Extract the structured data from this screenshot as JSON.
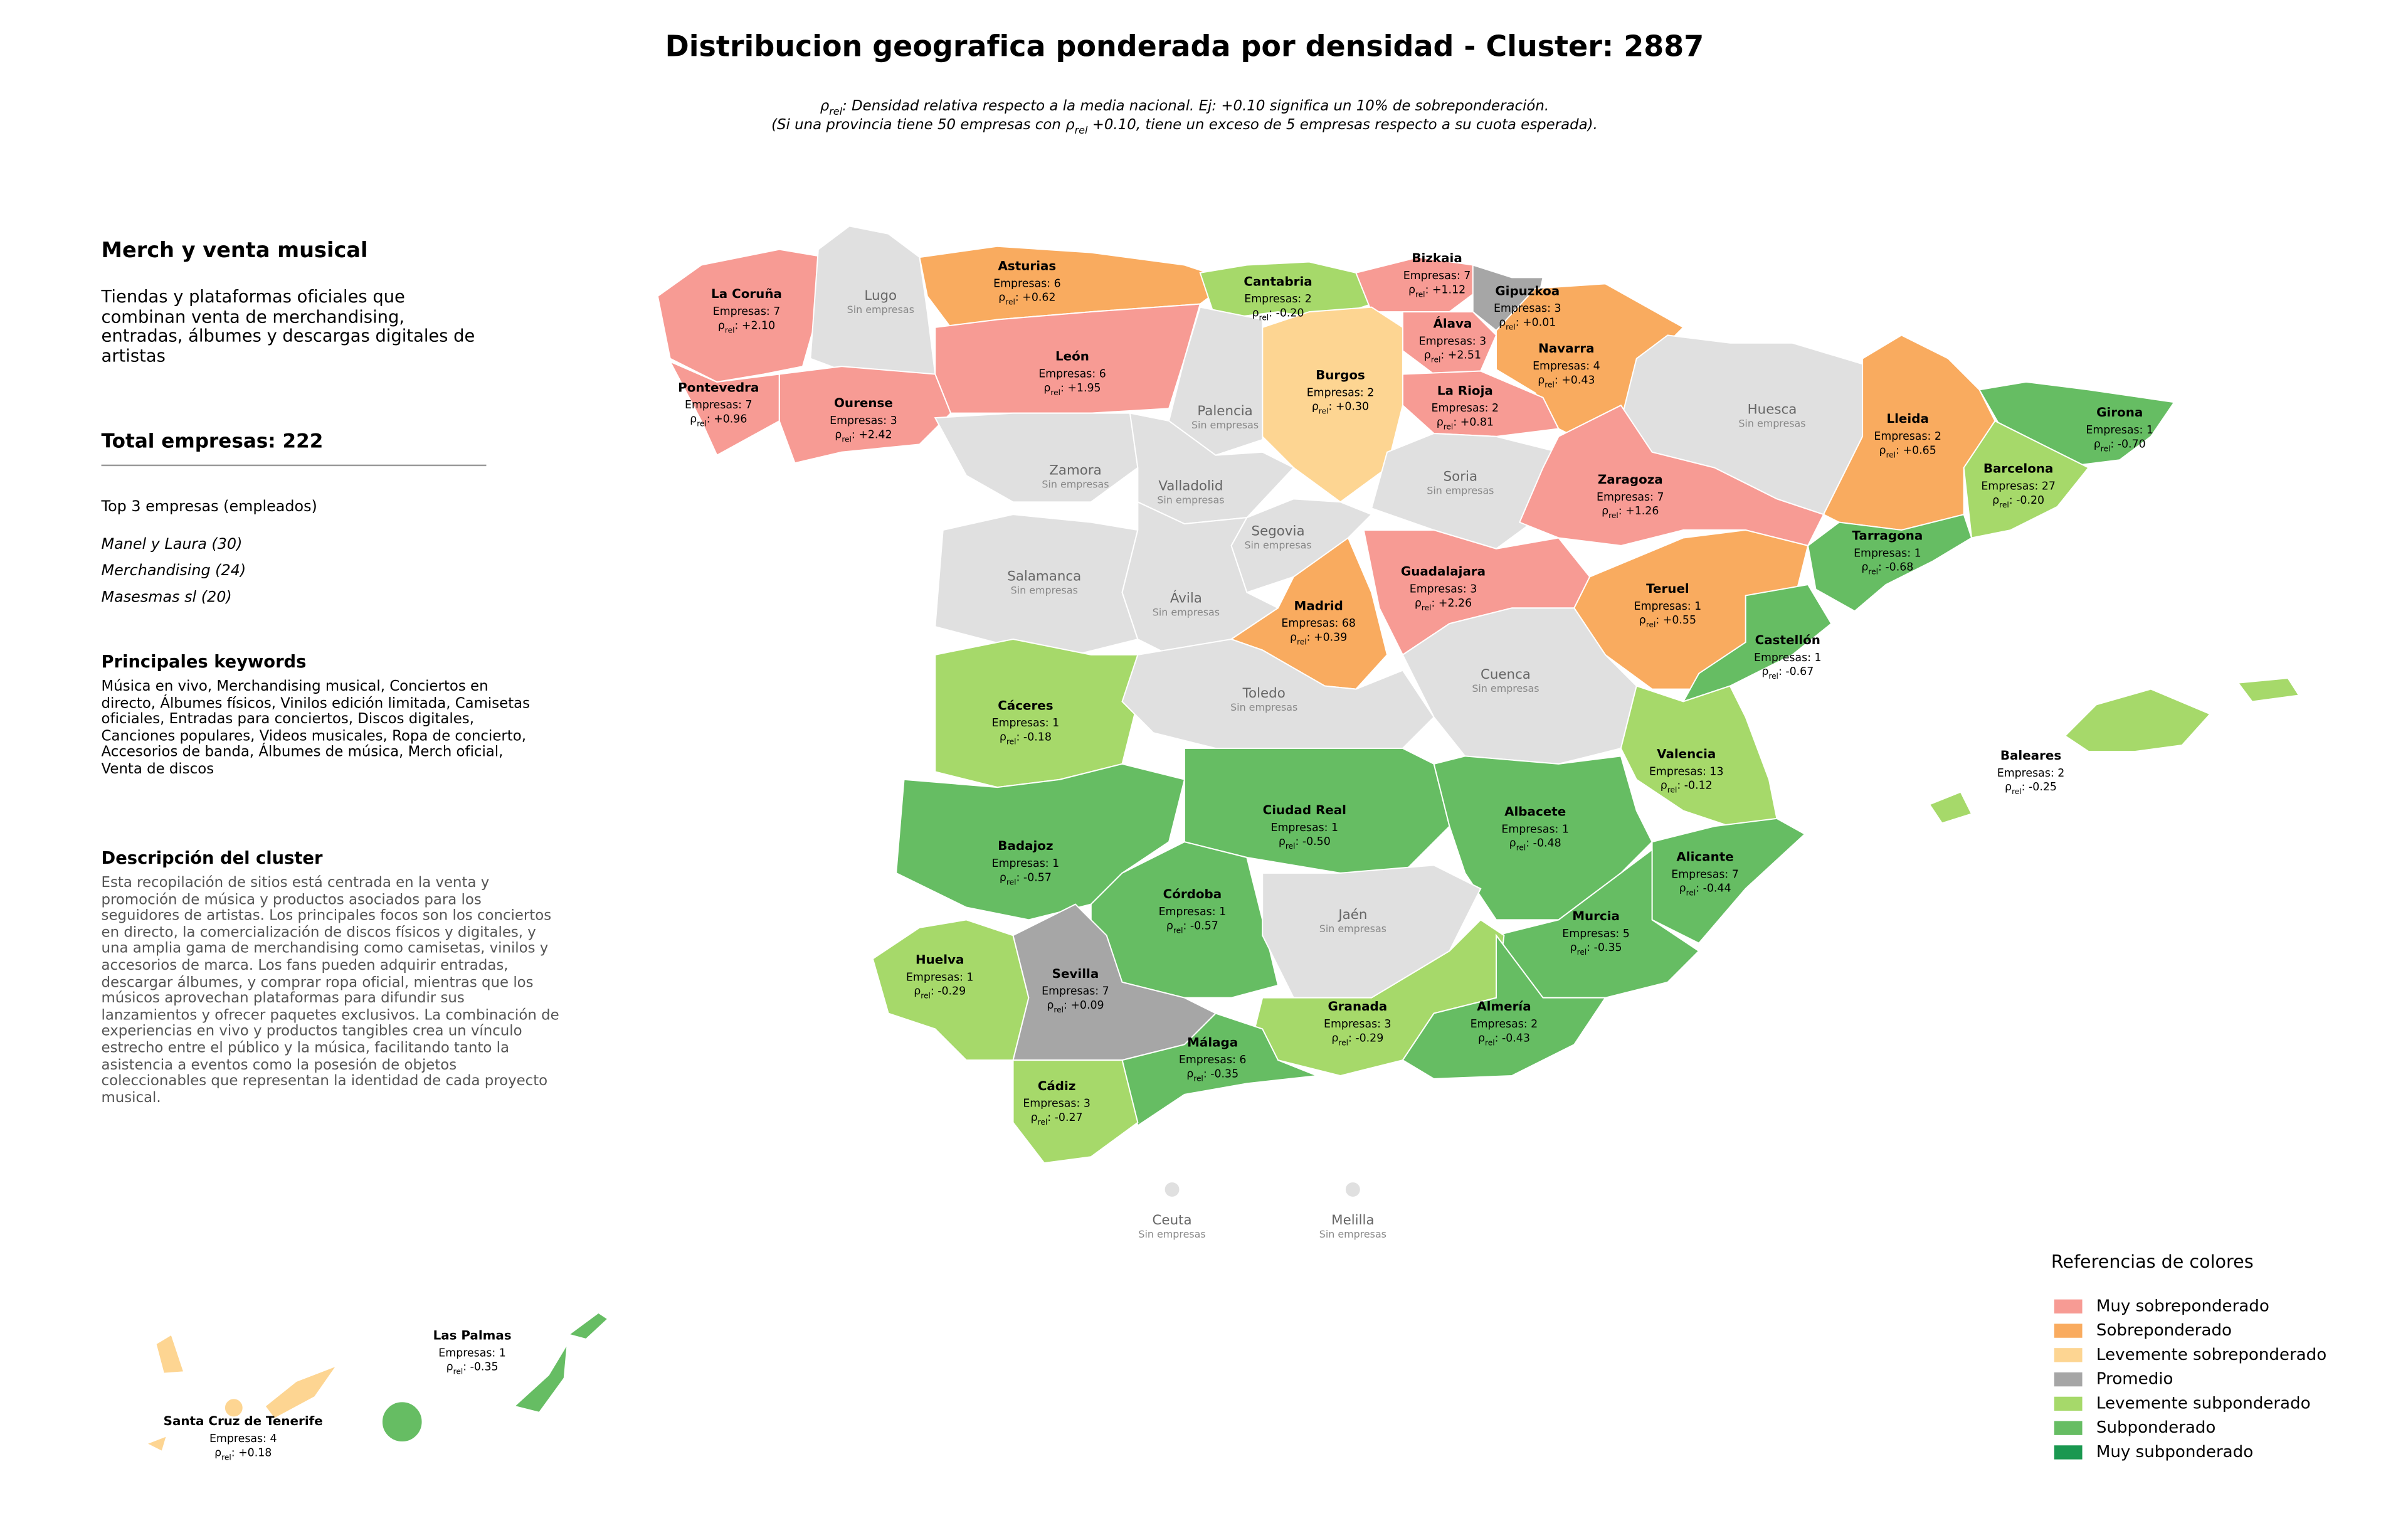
{
  "header": {
    "title": "Distribucion geografica ponderada por densidad - Cluster: 2887",
    "subtitle_lines": [
      "ρrel: Densidad relativa respecto a la media nacional. Ej: +0.10 significa un 10% de sobreponderación.",
      "(Si una provincia tiene 50 empresas con ρrel +0.10, tiene un exceso de 5 empresas respecto a su cuota esperada)."
    ]
  },
  "panel": {
    "cluster_name": "Merch y venta musical",
    "cluster_summary": "Tiendas y plataformas oficiales que combinan venta de merchandising, entradas, álbumes y descargas digitales de artistas",
    "total": "Total empresas: 222",
    "top_heading": "Top 3 empresas (empleados)",
    "top_companies": [
      "Manel y Laura (30)",
      "Merchandising (24)",
      "Masesmas sl (20)"
    ],
    "keywords_heading": "Principales keywords",
    "keywords": "Música en vivo, Merchandising musical, Conciertos en directo, Álbumes físicos, Vinilos edición limitada, Camisetas oficiales, Entradas para conciertos, Discos digitales, Canciones populares, Videos musicales, Ropa de concierto, Accesorios de banda, Álbumes de música, Merch oficial, Venta de discos",
    "description_heading": "Descripción del cluster",
    "description": "Esta recopilación de sitios está centrada en la venta y promoción de música y productos asociados para los seguidores de artistas. Los principales focos son los conciertos en directo, la comercialización de discos físicos y digitales, y una amplia gama de merchandising como camisetas, vinilos y accesorios de marca. Los fans pueden adquirir entradas, descargar álbumes, y comprar ropa oficial, mientras que los músicos aprovechan plataformas para difundir sus lanzamientos y ofrecer paquetes exclusivos. La combinación de experiencias en vivo y productos tangibles crea un vínculo estrecho entre el público y la música, facilitando tanto la asistencia a eventos como la posesión de objetos coleccionables que representan la identidad de cada proyecto musical."
  },
  "legend": {
    "title": "Referencias de colores",
    "items": [
      {
        "label": "Muy sobreponderado",
        "color": "#f79b94"
      },
      {
        "label": "Sobreponderado",
        "color": "#f9ab5f"
      },
      {
        "label": "Levemente sobreponderado",
        "color": "#fdd592"
      },
      {
        "label": "Promedio",
        "color": "#a6a6a6"
      },
      {
        "label": "Levemente subponderado",
        "color": "#a6d96a"
      },
      {
        "label": "Subponderado",
        "color": "#66bd63"
      },
      {
        "label": "Muy subponderado",
        "color": "#1a9850"
      }
    ]
  },
  "provinces": [
    {
      "name": "La Coruña",
      "empresas": "Empresas: 7",
      "rho": "ρrel: +2.10",
      "level": 0
    },
    {
      "name": "Lugo",
      "note": "Sin empresas"
    },
    {
      "name": "Asturias",
      "empresas": "Empresas: 6",
      "rho": "ρrel: +0.62",
      "level": 1
    },
    {
      "name": "Cantabria",
      "empresas": "Empresas: 2",
      "rho": "ρrel: -0.20",
      "level": 4
    },
    {
      "name": "Bizkaia",
      "empresas": "Empresas: 7",
      "rho": "ρrel: +1.12",
      "level": 0
    },
    {
      "name": "Gipuzkoa",
      "empresas": "Empresas: 3",
      "rho": "ρrel: +0.01",
      "level": 3
    },
    {
      "name": "Álava",
      "empresas": "Empresas: 3",
      "rho": "ρrel: +2.51",
      "level": 0
    },
    {
      "name": "Navarra",
      "empresas": "Empresas: 4",
      "rho": "ρrel: +0.43",
      "level": 1
    },
    {
      "name": "La Rioja",
      "empresas": "Empresas: 2",
      "rho": "ρrel: +0.81",
      "level": 0
    },
    {
      "name": "Burgos",
      "empresas": "Empresas: 2",
      "rho": "ρrel: +0.30",
      "level": 2
    },
    {
      "name": "León",
      "empresas": "Empresas: 6",
      "rho": "ρrel: +1.95",
      "level": 0
    },
    {
      "name": "Palencia",
      "note": "Sin empresas"
    },
    {
      "name": "Ourense",
      "empresas": "Empresas: 3",
      "rho": "ρrel: +2.42",
      "level": 0
    },
    {
      "name": "Pontevedra",
      "empresas": "Empresas: 7",
      "rho": "ρrel: +0.96",
      "level": 0
    },
    {
      "name": "Zamora",
      "note": "Sin empresas"
    },
    {
      "name": "Valladolid",
      "note": "Sin empresas"
    },
    {
      "name": "Soria",
      "note": "Sin empresas"
    },
    {
      "name": "Huesca",
      "note": "Sin empresas"
    },
    {
      "name": "Zaragoza",
      "empresas": "Empresas: 7",
      "rho": "ρrel: +1.26",
      "level": 0
    },
    {
      "name": "Lleida",
      "empresas": "Empresas: 2",
      "rho": "ρrel: +0.65",
      "level": 1
    },
    {
      "name": "Girona",
      "empresas": "Empresas: 1",
      "rho": "ρrel: -0.70",
      "level": 5
    },
    {
      "name": "Barcelona",
      "empresas": "Empresas: 27",
      "rho": "ρrel: -0.20",
      "level": 4
    },
    {
      "name": "Tarragona",
      "empresas": "Empresas: 1",
      "rho": "ρrel: -0.68",
      "level": 5
    },
    {
      "name": "Salamanca",
      "note": "Sin empresas"
    },
    {
      "name": "Segovia",
      "note": "Sin empresas"
    },
    {
      "name": "Ávila",
      "note": "Sin empresas"
    },
    {
      "name": "Madrid",
      "empresas": "Empresas: 68",
      "rho": "ρrel: +0.39",
      "level": 1
    },
    {
      "name": "Guadalajara",
      "empresas": "Empresas: 3",
      "rho": "ρrel: +2.26",
      "level": 0
    },
    {
      "name": "Teruel",
      "empresas": "Empresas: 1",
      "rho": "ρrel: +0.55",
      "level": 1
    },
    {
      "name": "Castellón",
      "empresas": "Empresas: 1",
      "rho": "ρrel: -0.67",
      "level": 5
    },
    {
      "name": "Cáceres",
      "empresas": "Empresas: 1",
      "rho": "ρrel: -0.18",
      "level": 4
    },
    {
      "name": "Toledo",
      "note": "Sin empresas"
    },
    {
      "name": "Cuenca",
      "note": "Sin empresas"
    },
    {
      "name": "Valencia",
      "empresas": "Empresas: 13",
      "rho": "ρrel: -0.12",
      "level": 4
    },
    {
      "name": "Badajoz",
      "empresas": "Empresas: 1",
      "rho": "ρrel: -0.57",
      "level": 5
    },
    {
      "name": "Ciudad Real",
      "empresas": "Empresas: 1",
      "rho": "ρrel: -0.50",
      "level": 5
    },
    {
      "name": "Albacete",
      "empresas": "Empresas: 1",
      "rho": "ρrel: -0.48",
      "level": 5
    },
    {
      "name": "Alicante",
      "empresas": "Empresas: 7",
      "rho": "ρrel: -0.44",
      "level": 5
    },
    {
      "name": "Córdoba",
      "empresas": "Empresas: 1",
      "rho": "ρrel: -0.57",
      "level": 5
    },
    {
      "name": "Jaén",
      "note": "Sin empresas"
    },
    {
      "name": "Murcia",
      "empresas": "Empresas: 5",
      "rho": "ρrel: -0.35",
      "level": 5
    },
    {
      "name": "Huelva",
      "empresas": "Empresas: 1",
      "rho": "ρrel: -0.29",
      "level": 4
    },
    {
      "name": "Sevilla",
      "empresas": "Empresas: 7",
      "rho": "ρrel: +0.09",
      "level": 3
    },
    {
      "name": "Granada",
      "empresas": "Empresas: 3",
      "rho": "ρrel: -0.29",
      "level": 4
    },
    {
      "name": "Almería",
      "empresas": "Empresas: 2",
      "rho": "ρrel: -0.43",
      "level": 5
    },
    {
      "name": "Málaga",
      "empresas": "Empresas: 6",
      "rho": "ρrel: -0.35",
      "level": 5
    },
    {
      "name": "Cádiz",
      "empresas": "Empresas: 3",
      "rho": "ρrel: -0.27",
      "level": 4
    },
    {
      "name": "Baleares",
      "empresas": "Empresas: 2",
      "rho": "ρrel: -0.25",
      "level": 4
    },
    {
      "name": "Las Palmas",
      "empresas": "Empresas: 1",
      "rho": "ρrel: -0.35",
      "level": 5
    },
    {
      "name": "Santa Cruz de Tenerife",
      "empresas": "Empresas: 4",
      "rho": "ρrel: +0.18",
      "level": 2
    },
    {
      "name": "Ceuta",
      "note": "Sin empresas"
    },
    {
      "name": "Melilla",
      "note": "Sin empresas"
    }
  ]
}
